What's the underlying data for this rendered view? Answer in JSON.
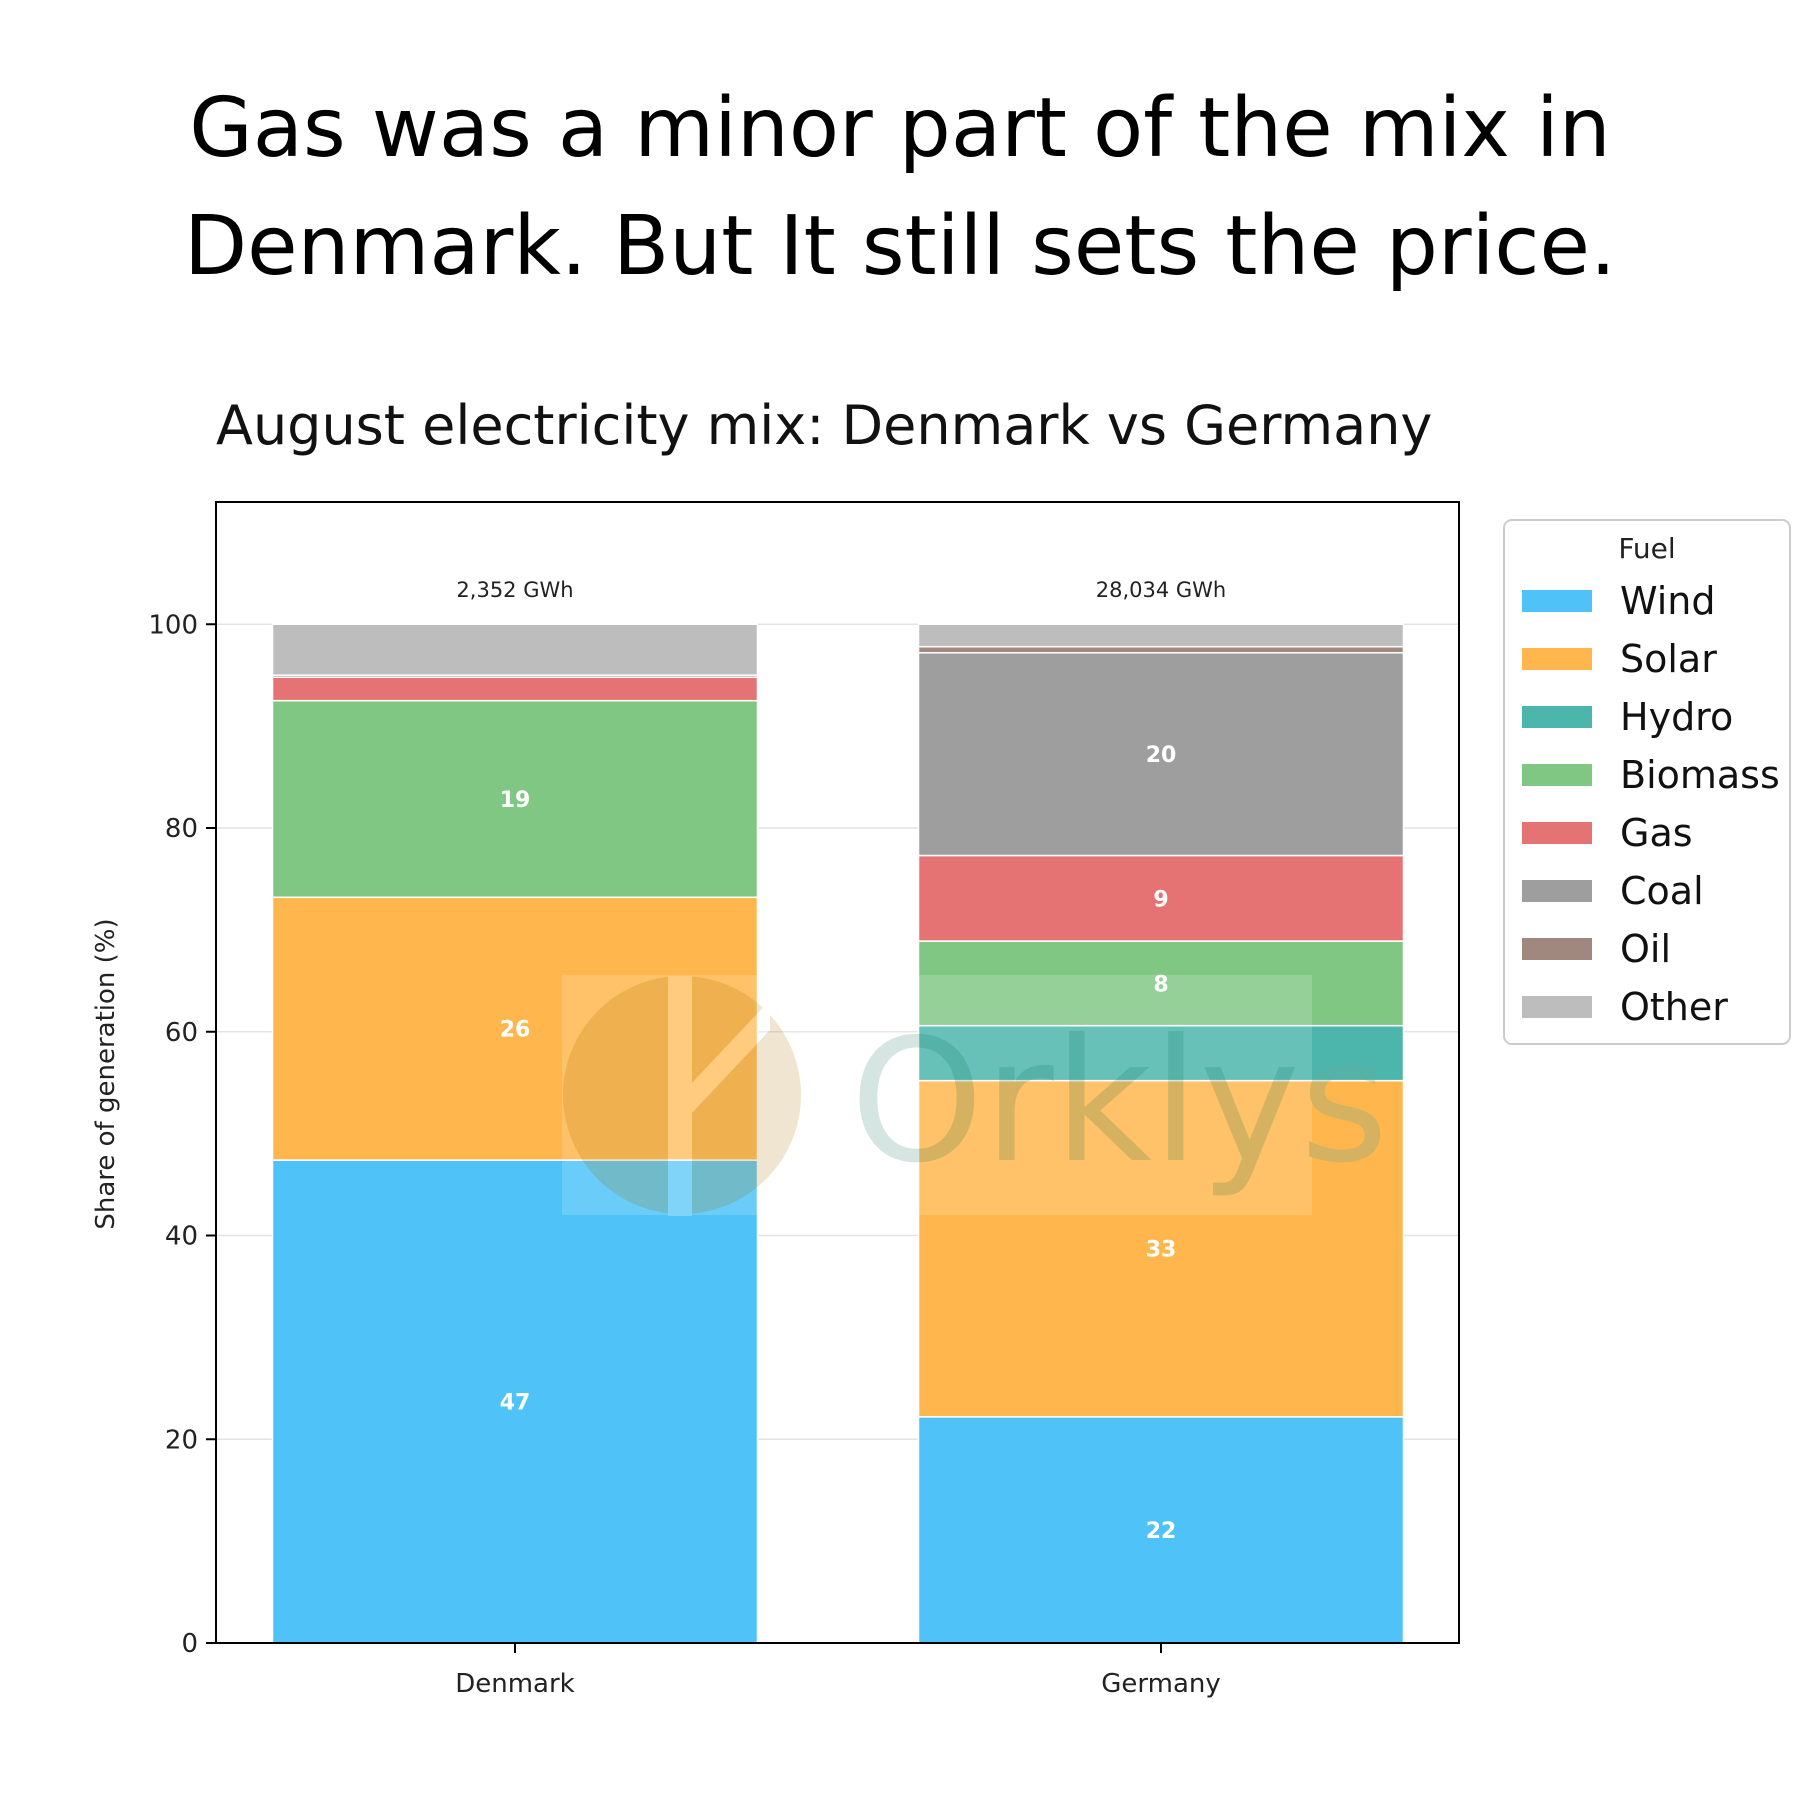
{
  "headline": {
    "line1": "Gas was a minor part of the mix in",
    "line2": "Denmark. But It still sets the price."
  },
  "watermark": {
    "text": "Orklys"
  },
  "chart_data": {
    "type": "bar",
    "stacked": true,
    "title": "August electricity mix: Denmark vs Germany",
    "xlabel": "",
    "ylabel": "Share of generation (%)",
    "ylim": [
      0,
      112
    ],
    "yticks": [
      0,
      20,
      40,
      60,
      80,
      100
    ],
    "grid": "y",
    "categories": [
      "Denmark",
      "Germany"
    ],
    "totals": [
      "2,352 GWh",
      "28,034 GWh"
    ],
    "legend_title": "Fuel",
    "legend_position": "outside-right",
    "series": [
      {
        "name": "Wind",
        "color": "#4fc3f7",
        "values": [
          47.4,
          22.2
        ],
        "labels": [
          "47",
          "22"
        ]
      },
      {
        "name": "Solar",
        "color": "#ffb74d",
        "values": [
          25.8,
          33.0
        ],
        "labels": [
          "26",
          "33"
        ]
      },
      {
        "name": "Hydro",
        "color": "#4db6ac",
        "values": [
          0.0,
          5.4
        ],
        "labels": [
          "",
          ""
        ]
      },
      {
        "name": "Biomass",
        "color": "#81c784",
        "values": [
          19.3,
          8.3
        ],
        "labels": [
          "19",
          "8"
        ]
      },
      {
        "name": "Gas",
        "color": "#e57373",
        "values": [
          2.3,
          8.4
        ],
        "labels": [
          "",
          "9"
        ]
      },
      {
        "name": "Coal",
        "color": "#9e9e9e",
        "values": [
          0.0,
          19.9
        ],
        "labels": [
          "",
          "20"
        ]
      },
      {
        "name": "Oil",
        "color": "#a1887f",
        "values": [
          0.2,
          0.6
        ],
        "labels": [
          "",
          ""
        ]
      },
      {
        "name": "Other",
        "color": "#bdbdbd",
        "values": [
          5.0,
          2.2
        ],
        "labels": [
          "",
          ""
        ]
      }
    ]
  }
}
